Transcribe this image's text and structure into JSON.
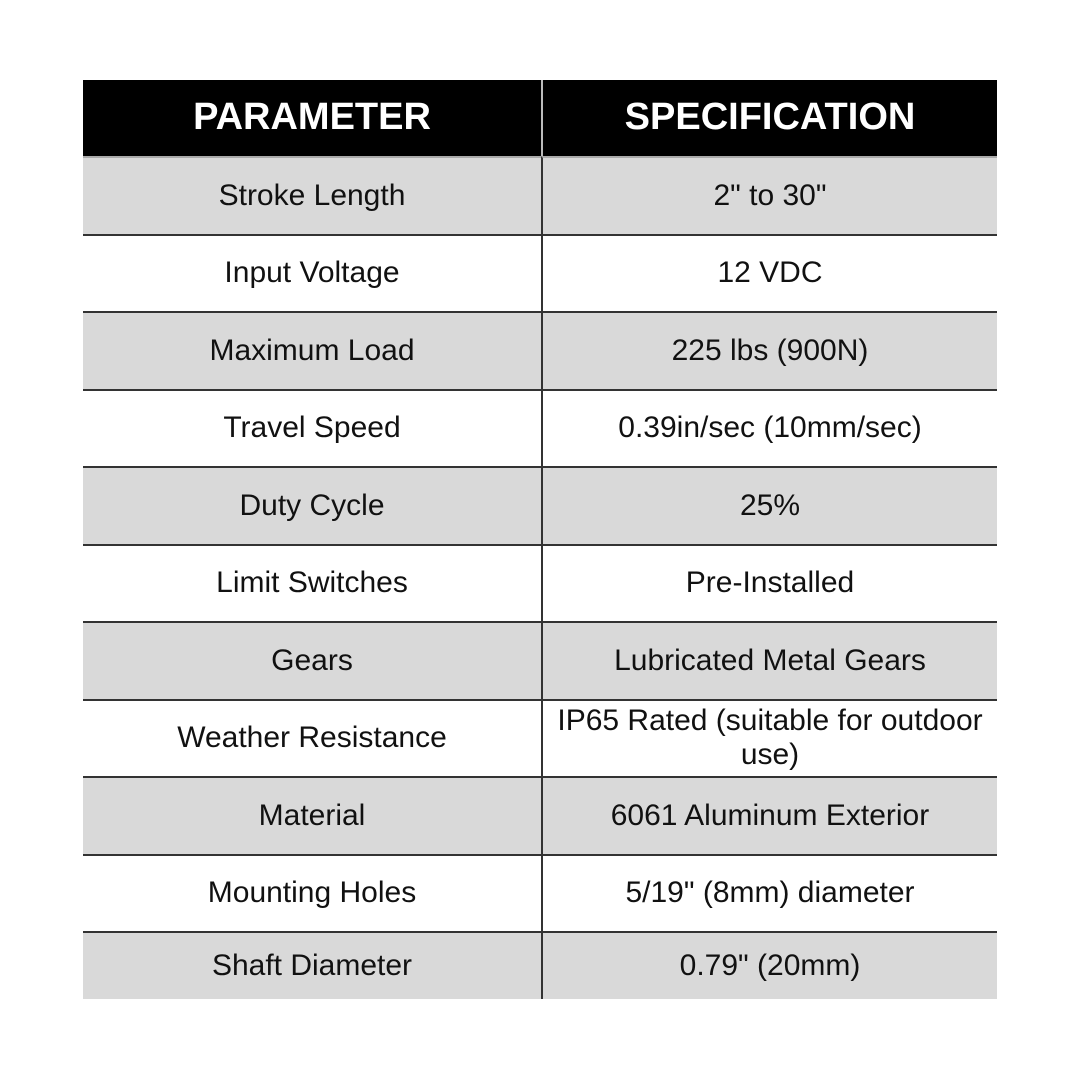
{
  "table": {
    "headers": [
      "PARAMETER",
      "SPECIFICATION"
    ],
    "rows": [
      [
        "Stroke Length",
        "2\" to 30\""
      ],
      [
        "Input Voltage",
        "12 VDC"
      ],
      [
        "Maximum Load",
        "225 lbs (900N)"
      ],
      [
        "Travel Speed",
        "0.39in/sec (10mm/sec)"
      ],
      [
        "Duty Cycle",
        "25%"
      ],
      [
        "Limit Switches",
        "Pre-Installed"
      ],
      [
        "Gears",
        "Lubricated Metal Gears"
      ],
      [
        "Weather Resistance",
        "IP65 Rated (suitable for outdoor use)"
      ],
      [
        "Material",
        "6061 Aluminum Exterior"
      ],
      [
        "Mounting Holes",
        "5/19\" (8mm) diameter"
      ],
      [
        "Shaft Diameter",
        "0.79\" (20mm)"
      ]
    ]
  },
  "colors": {
    "header_bg": "#000000",
    "header_text": "#ffffff",
    "row_alt_bg": "#d9d9d9",
    "row_bg": "#ffffff"
  }
}
